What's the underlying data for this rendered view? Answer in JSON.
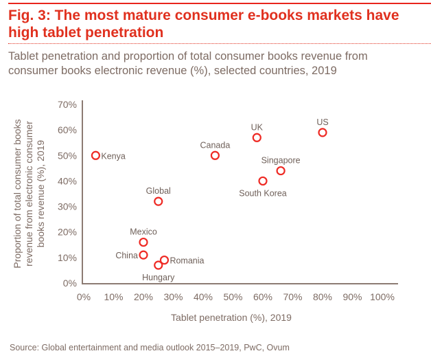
{
  "header": {
    "title": "Fig. 3: The most mature consumer e-books markets have high tablet penetration",
    "subtitle": "Tablet penetration and proportion of total consumer books revenue from consumer books electronic revenue (%), selected countries, 2019"
  },
  "footer": {
    "source": "Source: Global entertainment and media outlook 2015–2019, PwC, Ovum"
  },
  "colors": {
    "accent": "#e0301e",
    "marker": "#ee2a24",
    "text": "#7d6b63",
    "axis": "#8c7b73"
  },
  "chart_data": {
    "type": "scatter",
    "title": "Fig. 3: The most mature consumer e-books markets have high tablet penetration",
    "subtitle": "Tablet penetration and proportion of total consumer books revenue from consumer books electronic revenue (%), selected countries, 2019",
    "xlabel": "Tablet penetration (%), 2019",
    "ylabel_lines": [
      "Proportion of total consumer books",
      "revenue from electronic consumer",
      "books revenue (%), 2019"
    ],
    "xlim": [
      0,
      100
    ],
    "ylim": [
      0,
      70
    ],
    "xticks": [
      "0%",
      "10%",
      "20%",
      "30%",
      "40%",
      "50%",
      "60%",
      "70%",
      "80%",
      "90%",
      "100%"
    ],
    "yticks": [
      "0%",
      "10%",
      "20%",
      "30%",
      "40%",
      "50%",
      "60%",
      "70%"
    ],
    "grid": false,
    "points": [
      {
        "label": "Kenya",
        "x": 4,
        "y": 50,
        "label_pos": "right"
      },
      {
        "label": "Canada",
        "x": 44,
        "y": 50,
        "label_pos": "above"
      },
      {
        "label": "Global",
        "x": 25,
        "y": 32,
        "label_pos": "above"
      },
      {
        "label": "Mexico",
        "x": 20,
        "y": 16,
        "label_pos": "above"
      },
      {
        "label": "China",
        "x": 20,
        "y": 11,
        "label_pos": "left"
      },
      {
        "label": "Hungary",
        "x": 25,
        "y": 7,
        "label_pos": "below"
      },
      {
        "label": "Romania",
        "x": 27,
        "y": 9,
        "label_pos": "right"
      },
      {
        "label": "UK",
        "x": 58,
        "y": 57,
        "label_pos": "above"
      },
      {
        "label": "US",
        "x": 80,
        "y": 59,
        "label_pos": "above"
      },
      {
        "label": "Singapore",
        "x": 66,
        "y": 44,
        "label_pos": "above"
      },
      {
        "label": "South Korea",
        "x": 60,
        "y": 40,
        "label_pos": "below"
      }
    ]
  }
}
